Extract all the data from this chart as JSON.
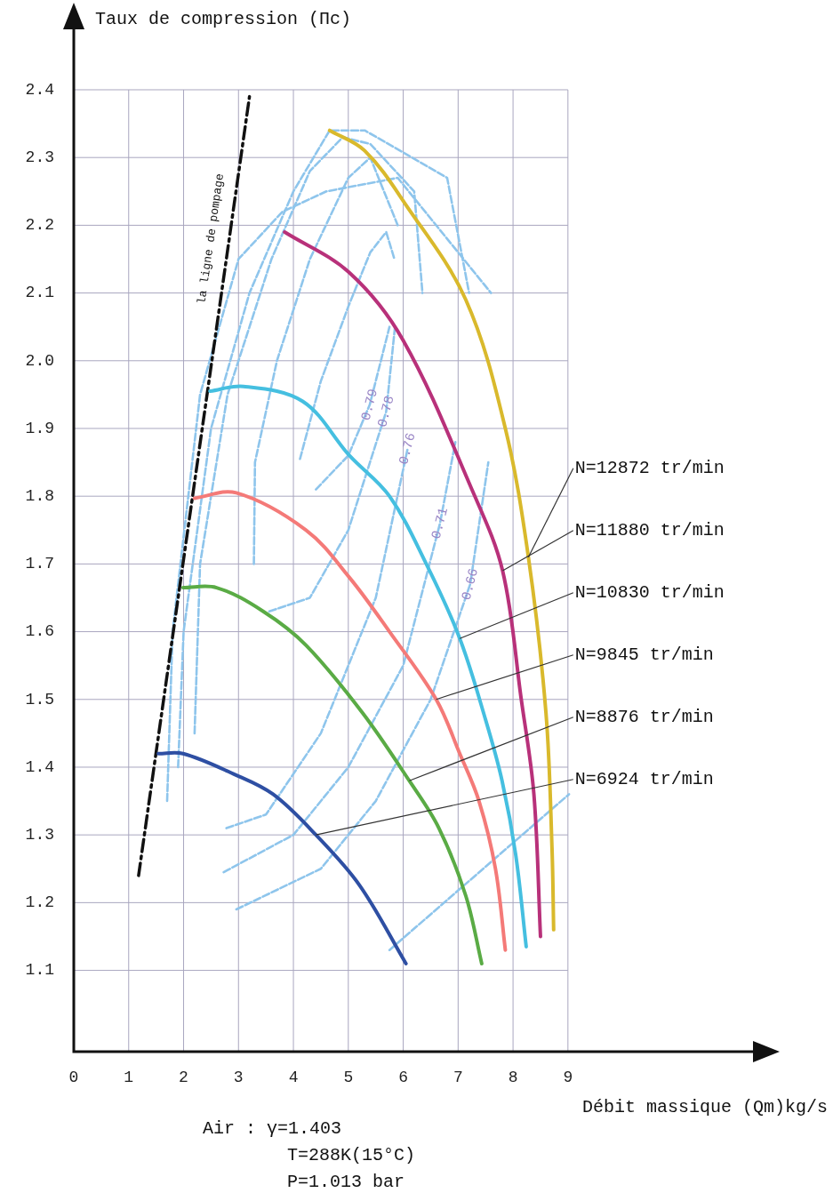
{
  "chart_data": {
    "type": "line",
    "ylabel": "Taux de compression (Πc)",
    "xlabel": "Débit massique (Qm)kg/s",
    "xlim": [
      0,
      12.5
    ],
    "ylim": [
      0.98,
      2.5
    ],
    "xticks": [
      0,
      1,
      2,
      3,
      4,
      5,
      6,
      7,
      8,
      9
    ],
    "yticks": [
      1.1,
      1.2,
      1.3,
      1.4,
      1.5,
      1.6,
      1.7,
      1.8,
      1.9,
      {
        "value": 2,
        "label": "2.0"
      },
      2.1,
      2.2,
      2.3,
      2.4
    ],
    "grid": true,
    "legend": false,
    "marker": "none",
    "series": [
      {
        "name": "N=12872 tr/min",
        "color": "#d9b92c",
        "x": [
          4.66,
          5.3,
          6.05,
          7.14,
          7.86,
          8.28,
          8.6,
          8.71,
          8.74
        ],
        "values": [
          2.34,
          2.31,
          2.23,
          2.09,
          1.9,
          1.71,
          1.48,
          1.28,
          1.16
        ]
      },
      {
        "name": "N=11880 tr/min",
        "color": "#b8317a",
        "x": [
          3.84,
          5.02,
          6.0,
          7.25,
          7.81,
          8.15,
          8.38,
          8.5
        ],
        "values": [
          2.19,
          2.13,
          2.03,
          1.81,
          1.69,
          1.5,
          1.36,
          1.15
        ]
      },
      {
        "name": "N=10830 tr/min",
        "color": "#45bfe0",
        "x": [
          2.48,
          3.09,
          4.17,
          5.02,
          5.75,
          6.42,
          7.03,
          7.5,
          7.8,
          8.05,
          8.24
        ],
        "values": [
          1.955,
          1.962,
          1.94,
          1.86,
          1.8,
          1.7,
          1.59,
          1.47,
          1.38,
          1.27,
          1.135
        ]
      },
      {
        "name": "N=9845 tr/min",
        "color": "#f47a78",
        "x": [
          2.2,
          2.96,
          4.23,
          5.02,
          5.75,
          6.6,
          7.03,
          7.38,
          7.68,
          7.86
        ],
        "values": [
          1.797,
          1.805,
          1.75,
          1.68,
          1.6,
          1.5,
          1.42,
          1.35,
          1.25,
          1.13
        ]
      },
      {
        "name": "N=8876 tr/min",
        "color": "#5aab45",
        "x": [
          1.99,
          2.6,
          3.45,
          4.23,
          5.26,
          6.11,
          6.65,
          7.14,
          7.43
        ],
        "values": [
          1.665,
          1.665,
          1.63,
          1.58,
          1.48,
          1.38,
          1.31,
          1.21,
          1.11
        ]
      },
      {
        "name": "N=6924 tr/min",
        "color": "#2e4fa3",
        "x": [
          1.54,
          1.99,
          2.91,
          3.63,
          4.41,
          5.21,
          6.05
        ],
        "values": [
          1.42,
          1.42,
          1.39,
          1.36,
          1.3,
          1.225,
          1.11
        ]
      },
      {
        "name": "la ligne de pompage",
        "color": "#111111",
        "line_style": "dashed",
        "x": [
          1.18,
          3.2
        ],
        "values": [
          1.24,
          2.39
        ]
      },
      {
        "color": "#8ec5ec",
        "line_style": "dashed",
        "x": [
          4.12,
          4.5,
          5.0,
          5.4,
          5.69,
          5.84
        ],
        "values": [
          1.855,
          1.97,
          2.08,
          2.16,
          2.19,
          2.15
        ]
      },
      {
        "color": "#8ec5ec",
        "line_style": "dashed",
        "x": [
          4.41,
          5.0,
          5.39,
          5.75
        ],
        "values": [
          1.81,
          1.86,
          1.935,
          2.05
        ]
      },
      {
        "color": "#8ec5ec",
        "line_style": "dashed",
        "x": [
          3.28,
          3.3,
          3.7,
          4.3,
          5.0,
          5.4,
          5.9
        ],
        "values": [
          1.7,
          1.85,
          2.0,
          2.15,
          2.27,
          2.3,
          2.2
        ]
      },
      {
        "color": "#8ec5ec",
        "line_style": "dashed",
        "x": [
          3.56,
          4.3,
          5.0,
          5.69,
          5.85
        ],
        "values": [
          1.63,
          1.65,
          1.75,
          1.925,
          2.05
        ]
      },
      {
        "color": "#8ec5ec",
        "line_style": "dashed",
        "x": [
          2.2,
          2.3,
          2.8,
          3.6,
          4.3,
          4.9,
          5.4,
          6.2,
          6.35
        ],
        "values": [
          1.45,
          1.7,
          1.95,
          2.15,
          2.28,
          2.33,
          2.32,
          2.25,
          2.1
        ]
      },
      {
        "color": "#8ec5ec",
        "line_style": "dashed",
        "x": [
          2.78,
          3.5,
          4.5,
          5.5,
          6.08
        ],
        "values": [
          1.31,
          1.33,
          1.45,
          1.65,
          1.87
        ]
      },
      {
        "color": "#8ec5ec",
        "line_style": "dashed",
        "x": [
          1.9,
          2.0,
          2.5,
          3.2,
          4.0,
          4.66,
          5.3,
          6.8,
          7.2
        ],
        "values": [
          1.4,
          1.6,
          1.9,
          2.1,
          2.25,
          2.34,
          2.34,
          2.27,
          2.1
        ]
      },
      {
        "color": "#8ec5ec",
        "line_style": "dashed",
        "x": [
          2.73,
          4.0,
          5.0,
          6.0,
          6.67,
          6.95
        ],
        "values": [
          1.245,
          1.3,
          1.4,
          1.55,
          1.76,
          1.88
        ]
      },
      {
        "color": "#8ec5ec",
        "line_style": "dashed",
        "x": [
          1.7,
          1.8,
          2.3,
          3.0,
          3.8,
          4.6,
          5.9,
          7.6
        ],
        "values": [
          1.35,
          1.6,
          1.95,
          2.15,
          2.22,
          2.25,
          2.27,
          2.1
        ]
      },
      {
        "color": "#8ec5ec",
        "line_style": "dashed",
        "x": [
          2.96,
          4.5,
          5.5,
          6.5,
          7.22,
          7.55
        ],
        "values": [
          1.19,
          1.25,
          1.35,
          1.5,
          1.67,
          1.85
        ]
      },
      {
        "color": "#8ec5ec",
        "line_style": "dashed",
        "x": [
          5.75,
          9.02
        ],
        "values": [
          1.13,
          1.36
        ]
      }
    ],
    "annotations": [
      {
        "text": "0.79",
        "x": 5.39,
        "y": 1.935
      },
      {
        "text": "0.78",
        "x": 5.69,
        "y": 1.925
      },
      {
        "text": "0.76",
        "x": 6.08,
        "y": 1.87
      },
      {
        "text": "0.71",
        "x": 6.67,
        "y": 1.76
      },
      {
        "text": "0.66",
        "x": 7.22,
        "y": 1.67
      },
      "Air : γ=1.403",
      "T=288K(15°C)",
      "P=1.013 bar"
    ]
  }
}
